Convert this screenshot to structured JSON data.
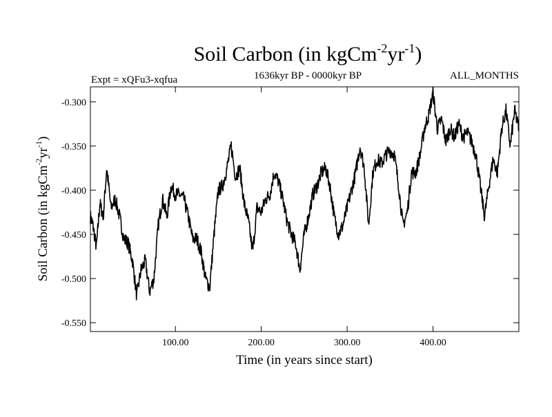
{
  "chart_data": {
    "type": "line",
    "title_main": "Soil Carbon (in kgCm",
    "title_sup1": "-2",
    "title_mid": "yr",
    "title_sup2": "-1",
    "title_end": ")",
    "left_subtitle": "Expt = xQFu3-xqfua",
    "center_subtitle": "1636kyr BP - 0000kyr BP",
    "right_subtitle": "ALL_MONTHS",
    "xlabel": "Time (in years since start)",
    "ylabel_main": "Soil Carbon (in kgCm",
    "ylabel_sup1": "-2",
    "ylabel_mid": "yr",
    "ylabel_sup2": "-1",
    "ylabel_end": ")",
    "xlim": [
      1,
      500
    ],
    "ylim": [
      -0.56,
      -0.283
    ],
    "x_ticks": [
      100,
      200,
      300,
      400
    ],
    "x_tick_labels": [
      "100.00",
      "200.00",
      "300.00",
      "400.00"
    ],
    "y_ticks": [
      -0.3,
      -0.35,
      -0.4,
      -0.45,
      -0.5,
      -0.55
    ],
    "y_tick_labels": [
      "-0.300",
      "-0.350",
      "-0.400",
      "-0.450",
      "-0.500",
      "-0.550"
    ],
    "line_color": "#000000",
    "series": [
      {
        "name": "Soil Carbon",
        "x": [
          1,
          4,
          8,
          12,
          16,
          20,
          25,
          30,
          35,
          40,
          45,
          50,
          55,
          60,
          65,
          70,
          75,
          80,
          85,
          90,
          95,
          100,
          105,
          110,
          115,
          120,
          125,
          130,
          135,
          140,
          145,
          150,
          155,
          160,
          165,
          170,
          175,
          180,
          185,
          190,
          195,
          200,
          205,
          210,
          215,
          220,
          225,
          230,
          235,
          240,
          245,
          250,
          255,
          260,
          265,
          270,
          275,
          280,
          285,
          290,
          295,
          300,
          305,
          310,
          315,
          320,
          325,
          330,
          335,
          340,
          345,
          350,
          355,
          360,
          365,
          370,
          375,
          380,
          385,
          390,
          395,
          400,
          405,
          410,
          415,
          420,
          425,
          430,
          435,
          440,
          445,
          450,
          455,
          460,
          465,
          470,
          475,
          480,
          485,
          490,
          495,
          500
        ],
        "y": [
          -0.43,
          -0.44,
          -0.465,
          -0.415,
          -0.43,
          -0.375,
          -0.42,
          -0.41,
          -0.43,
          -0.455,
          -0.46,
          -0.48,
          -0.52,
          -0.49,
          -0.48,
          -0.515,
          -0.5,
          -0.44,
          -0.41,
          -0.43,
          -0.395,
          -0.405,
          -0.405,
          -0.41,
          -0.43,
          -0.455,
          -0.455,
          -0.47,
          -0.5,
          -0.51,
          -0.45,
          -0.4,
          -0.395,
          -0.375,
          -0.35,
          -0.385,
          -0.375,
          -0.415,
          -0.435,
          -0.47,
          -0.42,
          -0.425,
          -0.41,
          -0.405,
          -0.38,
          -0.39,
          -0.41,
          -0.435,
          -0.45,
          -0.46,
          -0.49,
          -0.45,
          -0.43,
          -0.405,
          -0.395,
          -0.38,
          -0.375,
          -0.395,
          -0.43,
          -0.45,
          -0.44,
          -0.42,
          -0.4,
          -0.38,
          -0.35,
          -0.375,
          -0.44,
          -0.38,
          -0.365,
          -0.37,
          -0.36,
          -0.355,
          -0.36,
          -0.395,
          -0.44,
          -0.425,
          -0.38,
          -0.38,
          -0.36,
          -0.33,
          -0.315,
          -0.29,
          -0.33,
          -0.32,
          -0.345,
          -0.33,
          -0.34,
          -0.325,
          -0.34,
          -0.335,
          -0.345,
          -0.36,
          -0.395,
          -0.43,
          -0.395,
          -0.365,
          -0.38,
          -0.33,
          -0.31,
          -0.35,
          -0.31,
          -0.33
        ]
      }
    ]
  }
}
